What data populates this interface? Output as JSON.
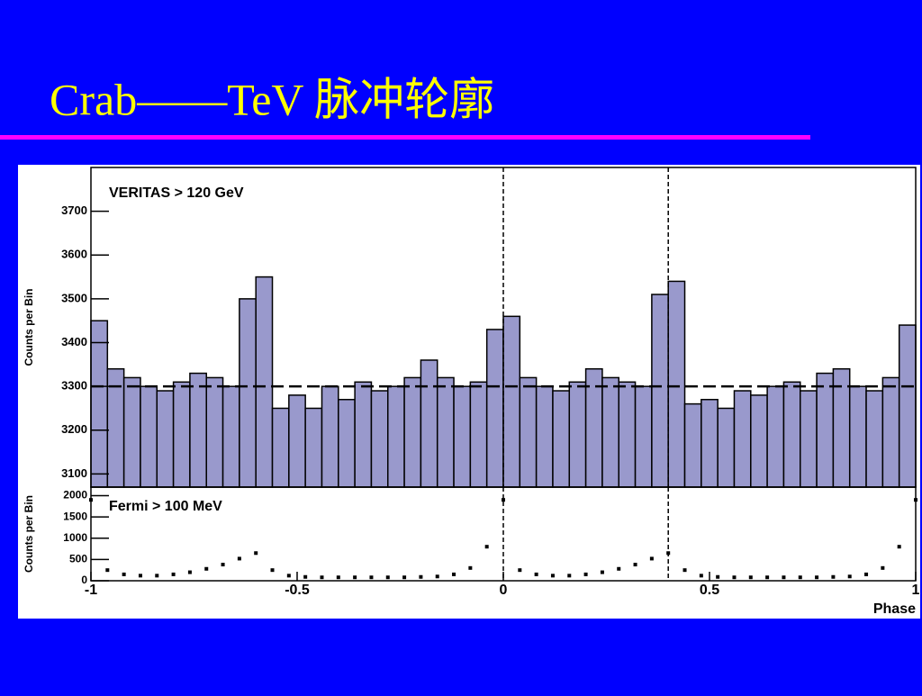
{
  "title": "Crab——TeV 脉冲轮廓",
  "chart_data": [
    {
      "type": "histogram",
      "annotation": "VERITAS > 120 GeV",
      "ylabel": "Counts per Bin",
      "bins": [
        -1,
        -0.96,
        -0.92,
        -0.88,
        -0.84,
        -0.8,
        -0.76,
        -0.72,
        -0.68,
        -0.64,
        -0.6,
        -0.56,
        -0.52,
        -0.48,
        -0.44,
        -0.4,
        -0.36,
        -0.32,
        -0.28,
        -0.24,
        -0.2,
        -0.16,
        -0.12,
        -0.08,
        -0.04,
        0,
        0.04,
        0.08,
        0.12,
        0.16,
        0.2,
        0.24,
        0.28,
        0.32,
        0.36,
        0.4,
        0.44,
        0.48,
        0.52,
        0.56,
        0.6,
        0.64,
        0.68,
        0.72,
        0.76,
        0.8,
        0.84,
        0.88,
        0.92,
        0.96,
        1
      ],
      "counts": [
        3450,
        3340,
        3320,
        3300,
        3290,
        3310,
        3330,
        3320,
        3300,
        3500,
        3550,
        3250,
        3280,
        3250,
        3300,
        3270,
        3310,
        3290,
        3300,
        3320,
        3360,
        3320,
        3300,
        3310,
        3430,
        3460,
        3320,
        3300,
        3290,
        3310,
        3340,
        3320,
        3310,
        3300,
        3510,
        3540,
        3260,
        3270,
        3250,
        3290,
        3280,
        3300,
        3310,
        3290,
        3330,
        3340,
        3300,
        3290,
        3320,
        3440
      ],
      "color": "#9999cc",
      "xlim": [
        -1,
        1
      ],
      "ylim": [
        3070,
        3800
      ],
      "yticks": [
        3100,
        3200,
        3300,
        3400,
        3500,
        3600,
        3700
      ],
      "hline": 3300,
      "vlines": [
        0,
        0.4
      ]
    },
    {
      "type": "scatter",
      "annotation": "Fermi > 100 MeV",
      "ylabel": "Counts per Bin",
      "xlabel": "Phase",
      "x": [
        -1,
        -0.96,
        -0.92,
        -0.88,
        -0.84,
        -0.8,
        -0.76,
        -0.72,
        -0.68,
        -0.64,
        -0.6,
        -0.56,
        -0.52,
        -0.48,
        -0.44,
        -0.4,
        -0.36,
        -0.32,
        -0.28,
        -0.24,
        -0.2,
        -0.16,
        -0.12,
        -0.08,
        -0.04,
        0,
        0.04,
        0.08,
        0.12,
        0.16,
        0.2,
        0.24,
        0.28,
        0.32,
        0.36,
        0.4,
        0.44,
        0.48,
        0.52,
        0.56,
        0.6,
        0.64,
        0.68,
        0.72,
        0.76,
        0.8,
        0.84,
        0.88,
        0.92,
        0.96,
        1
      ],
      "values": [
        1900,
        250,
        150,
        120,
        120,
        150,
        200,
        280,
        380,
        520,
        650,
        250,
        120,
        90,
        80,
        80,
        80,
        80,
        80,
        80,
        90,
        100,
        150,
        300,
        800,
        1900,
        250,
        150,
        120,
        120,
        150,
        200,
        280,
        380,
        520,
        650,
        250,
        120,
        90,
        80,
        80,
        80,
        80,
        80,
        80,
        90,
        100,
        150,
        300,
        800,
        1900
      ],
      "color": "#000000",
      "xlim": [
        -1,
        1
      ],
      "ylim": [
        0,
        2200
      ],
      "yticks": [
        0,
        500,
        1000,
        1500,
        2000
      ],
      "xticks": [
        -1,
        -0.5,
        0,
        0.5,
        1
      ],
      "vlines": [
        0,
        0.4
      ]
    }
  ]
}
